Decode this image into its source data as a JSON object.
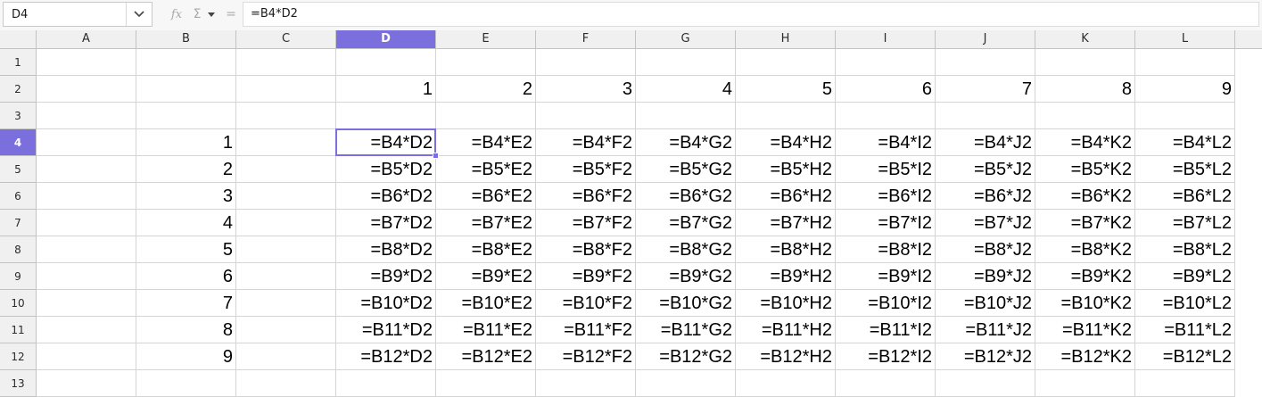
{
  "formula_bar": {
    "name_box": "D4",
    "formula": "=B4*D2",
    "function_wizard_label": "fx",
    "sum_symbol": "Σ",
    "equals_symbol": "="
  },
  "columns": [
    "A",
    "B",
    "C",
    "D",
    "E",
    "F",
    "G",
    "H",
    "I",
    "J",
    "K",
    "L"
  ],
  "rows": [
    "1",
    "2",
    "3",
    "4",
    "5",
    "6",
    "7",
    "8",
    "9",
    "10",
    "11",
    "12",
    "13"
  ],
  "active_cell": {
    "column": "D",
    "row": "4"
  },
  "accent_color": "#7a6fdc",
  "cells": {
    "D2": "1",
    "E2": "2",
    "F2": "3",
    "G2": "4",
    "H2": "5",
    "I2": "6",
    "J2": "7",
    "K2": "8",
    "L2": "9",
    "B4": "1",
    "B5": "2",
    "B6": "3",
    "B7": "4",
    "B8": "5",
    "B9": "6",
    "B10": "7",
    "B11": "8",
    "B12": "9",
    "D4": "=B4*D2",
    "E4": "=B4*E2",
    "F4": "=B4*F2",
    "G4": "=B4*G2",
    "H4": "=B4*H2",
    "I4": "=B4*I2",
    "J4": "=B4*J2",
    "K4": "=B4*K2",
    "L4": "=B4*L2",
    "D5": "=B5*D2",
    "E5": "=B5*E2",
    "F5": "=B5*F2",
    "G5": "=B5*G2",
    "H5": "=B5*H2",
    "I5": "=B5*I2",
    "J5": "=B5*J2",
    "K5": "=B5*K2",
    "L5": "=B5*L2",
    "D6": "=B6*D2",
    "E6": "=B6*E2",
    "F6": "=B6*F2",
    "G6": "=B6*G2",
    "H6": "=B6*H2",
    "I6": "=B6*I2",
    "J6": "=B6*J2",
    "K6": "=B6*K2",
    "L6": "=B6*L2",
    "D7": "=B7*D2",
    "E7": "=B7*E2",
    "F7": "=B7*F2",
    "G7": "=B7*G2",
    "H7": "=B7*H2",
    "I7": "=B7*I2",
    "J7": "=B7*J2",
    "K7": "=B7*K2",
    "L7": "=B7*L2",
    "D8": "=B8*D2",
    "E8": "=B8*E2",
    "F8": "=B8*F2",
    "G8": "=B8*G2",
    "H8": "=B8*H2",
    "I8": "=B8*I2",
    "J8": "=B8*J2",
    "K8": "=B8*K2",
    "L8": "=B8*L2",
    "D9": "=B9*D2",
    "E9": "=B9*E2",
    "F9": "=B9*F2",
    "G9": "=B9*G2",
    "H9": "=B9*H2",
    "I9": "=B9*I2",
    "J9": "=B9*J2",
    "K9": "=B9*K2",
    "L9": "=B9*L2",
    "D10": "=B10*D2",
    "E10": "=B10*E2",
    "F10": "=B10*F2",
    "G10": "=B10*G2",
    "H10": "=B10*H2",
    "I10": "=B10*I2",
    "J10": "=B10*J2",
    "K10": "=B10*K2",
    "L10": "=B10*L2",
    "D11": "=B11*D2",
    "E11": "=B11*E2",
    "F11": "=B11*F2",
    "G11": "=B11*G2",
    "H11": "=B11*H2",
    "I11": "=B11*I2",
    "J11": "=B11*J2",
    "K11": "=B11*K2",
    "L11": "=B11*L2",
    "D12": "=B12*D2",
    "E12": "=B12*E2",
    "F12": "=B12*F2",
    "G12": "=B12*G2",
    "H12": "=B12*H2",
    "I12": "=B12*I2",
    "J12": "=B12*J2",
    "K12": "=B12*K2",
    "L12": "=B12*L2"
  }
}
